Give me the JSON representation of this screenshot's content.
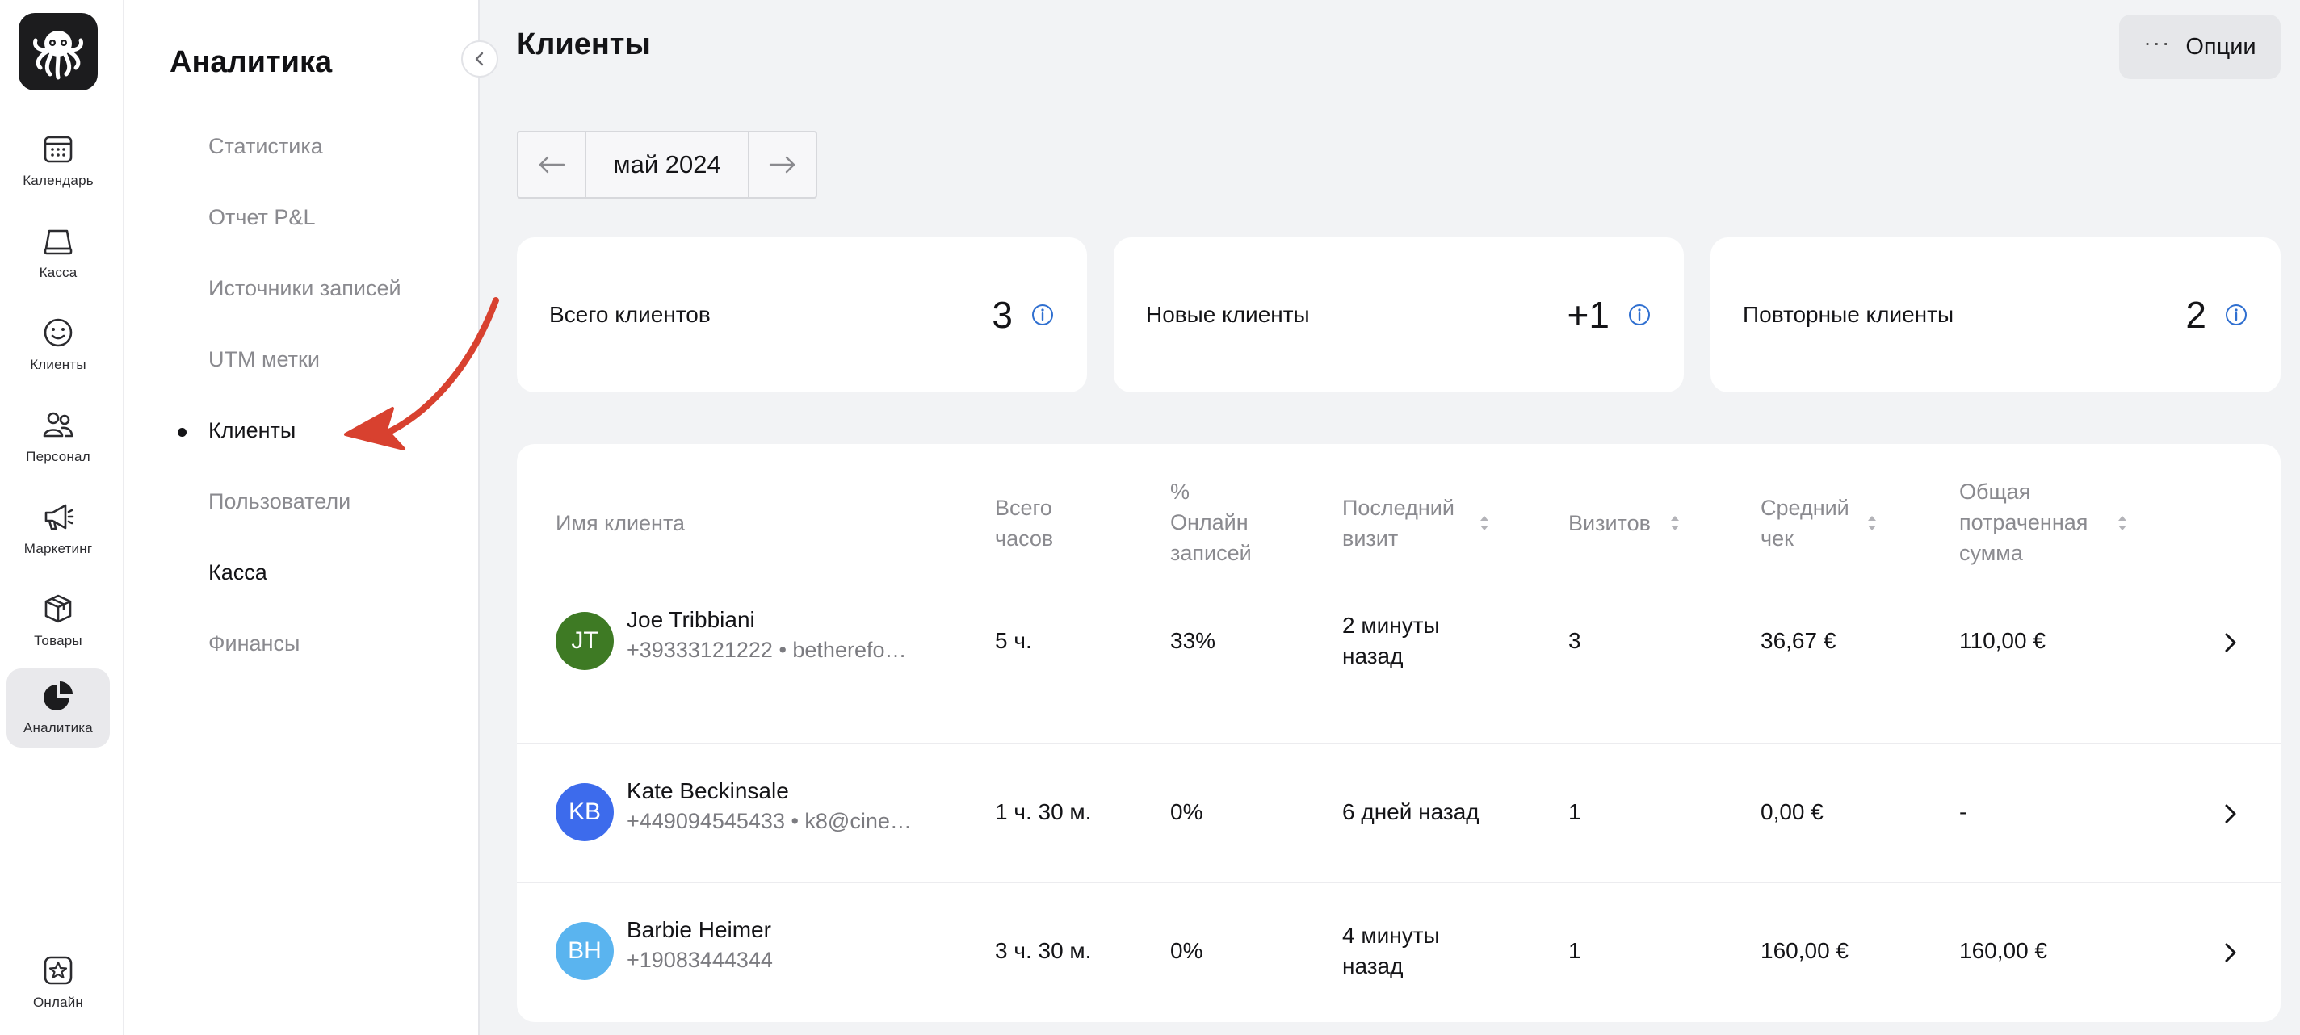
{
  "rail": {
    "items": [
      {
        "label": "Календарь",
        "icon": "calendar-icon"
      },
      {
        "label": "Касса",
        "icon": "register-icon"
      },
      {
        "label": "Клиенты",
        "icon": "smile-icon"
      },
      {
        "label": "Персонал",
        "icon": "team-icon"
      },
      {
        "label": "Маркетинг",
        "icon": "megaphone-icon"
      },
      {
        "label": "Товары",
        "icon": "box-icon"
      },
      {
        "label": "Аналитика",
        "icon": "pie-chart-icon"
      }
    ],
    "bottom": {
      "label": "Онлайн",
      "icon": "star-icon"
    }
  },
  "subnav": {
    "title": "Аналитика",
    "items": [
      {
        "label": "Статистика"
      },
      {
        "label": "Отчет P&L"
      },
      {
        "label": "Источники записей"
      },
      {
        "label": "UTM метки"
      },
      {
        "label": "Клиенты"
      },
      {
        "label": "Пользователи"
      },
      {
        "label": "Касса"
      },
      {
        "label": "Финансы"
      }
    ]
  },
  "header": {
    "title": "Клиенты",
    "options_label": "Опции"
  },
  "period": {
    "label": "май 2024"
  },
  "stats": [
    {
      "label": "Всего клиентов",
      "value": "3"
    },
    {
      "label": "Новые клиенты",
      "value": "+1"
    },
    {
      "label": "Повторные клиенты",
      "value": "2"
    }
  ],
  "table": {
    "columns": {
      "name": "Имя клиента",
      "hours_1": "Всего",
      "hours_2": "часов",
      "online_1": "%",
      "online_2": "Онлайн",
      "online_3": "записей",
      "last_1": "Последний",
      "last_2": "визит",
      "visits": "Визитов",
      "avg_1": "Средний",
      "avg_2": "чек",
      "total_1": "Общая",
      "total_2": "потраченная",
      "total_3": "сумма"
    },
    "rows": [
      {
        "initials": "JT",
        "color": "#3e7a24",
        "name": "Joe Tribbiani",
        "contact": "+39333121222 • betherefo…",
        "hours": "5 ч.",
        "online": "33%",
        "last_1": "2 минуты",
        "last_2": "назад",
        "visits": "3",
        "avg": "36,67 €",
        "total": "110,00 €"
      },
      {
        "initials": "KB",
        "color": "#3d6bec",
        "name": "Kate Beckinsale",
        "contact": "+449094545433 • k8@cine…",
        "hours": "1 ч. 30 м.",
        "online": "0%",
        "last_1": "6 дней назад",
        "last_2": "",
        "visits": "1",
        "avg": "0,00 €",
        "total": "-"
      },
      {
        "initials": "BH",
        "color": "#5ab4ef",
        "name": "Barbie Heimer",
        "contact": "+19083444344",
        "hours": "3 ч. 30 м.",
        "online": "0%",
        "last_1": "4 минуты",
        "last_2": "назад",
        "visits": "1",
        "avg": "160,00 €",
        "total": "160,00 €"
      }
    ]
  },
  "colors": {
    "accent_info": "#2f6fd0",
    "annotation_arrow": "#d8412f"
  }
}
